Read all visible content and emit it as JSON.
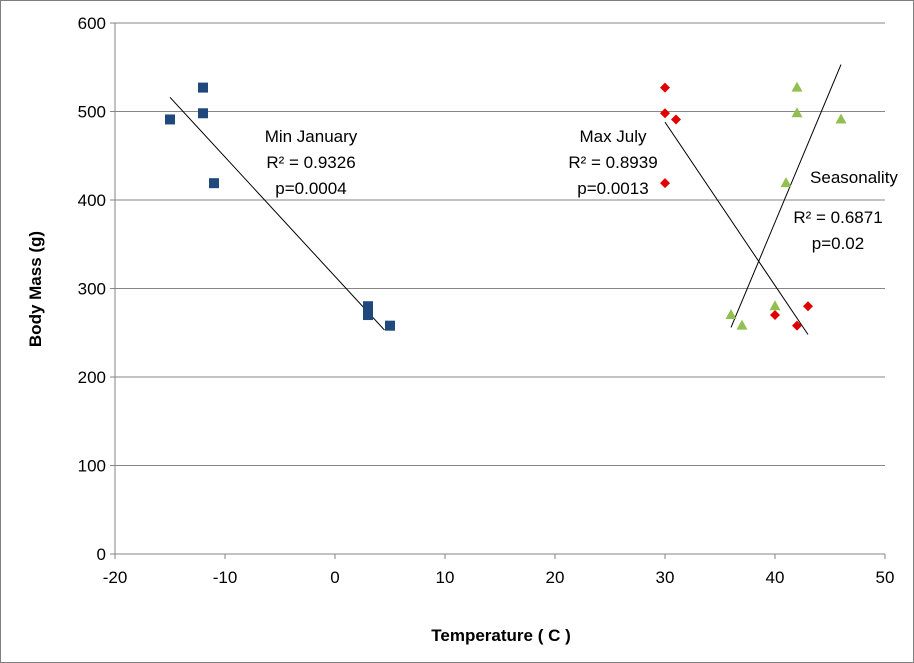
{
  "chart_data": {
    "type": "scatter",
    "xlabel": "Temperature ( C )",
    "ylabel": "Body Mass (g)",
    "xlim": [
      -20,
      50
    ],
    "ylim": [
      0,
      600
    ],
    "xticks": [
      -20,
      -10,
      0,
      10,
      20,
      30,
      40,
      50
    ],
    "yticks": [
      0,
      100,
      200,
      300,
      400,
      500,
      600
    ],
    "grid": "horizontal",
    "series": [
      {
        "marker": "square",
        "color": "#1f497d",
        "points": [
          [
            -15,
            491
          ],
          [
            -12,
            527
          ],
          [
            -12,
            498
          ],
          [
            -11,
            419
          ],
          [
            3,
            280
          ],
          [
            3,
            270
          ],
          [
            5,
            258
          ]
        ],
        "trendline": [
          [
            -15,
            516
          ],
          [
            4.5,
            253
          ]
        ],
        "annotation": [
          "Min January",
          "R² = 0.9326",
          "p=0.0004"
        ]
      },
      {
        "marker": "diamond",
        "color": "#e00000",
        "points": [
          [
            30,
            527
          ],
          [
            30,
            498
          ],
          [
            30,
            419
          ],
          [
            31,
            491
          ],
          [
            40,
            270
          ],
          [
            42,
            258
          ],
          [
            43,
            280
          ]
        ],
        "trendline": [
          [
            30,
            488
          ],
          [
            43,
            248
          ]
        ],
        "annotation": [
          "Max July",
          "R² = 0.8939",
          "p=0.0013"
        ]
      },
      {
        "marker": "triangle",
        "color": "#92c050",
        "points": [
          [
            36,
            270
          ],
          [
            37,
            258
          ],
          [
            40,
            280
          ],
          [
            41,
            419
          ],
          [
            42,
            527
          ],
          [
            42,
            498
          ],
          [
            46,
            491
          ]
        ],
        "trendline": [
          [
            36,
            256
          ],
          [
            46,
            553
          ]
        ],
        "annotation": [
          "Seasonality",
          "R² = 0.6871",
          "p=0.02"
        ]
      }
    ]
  }
}
